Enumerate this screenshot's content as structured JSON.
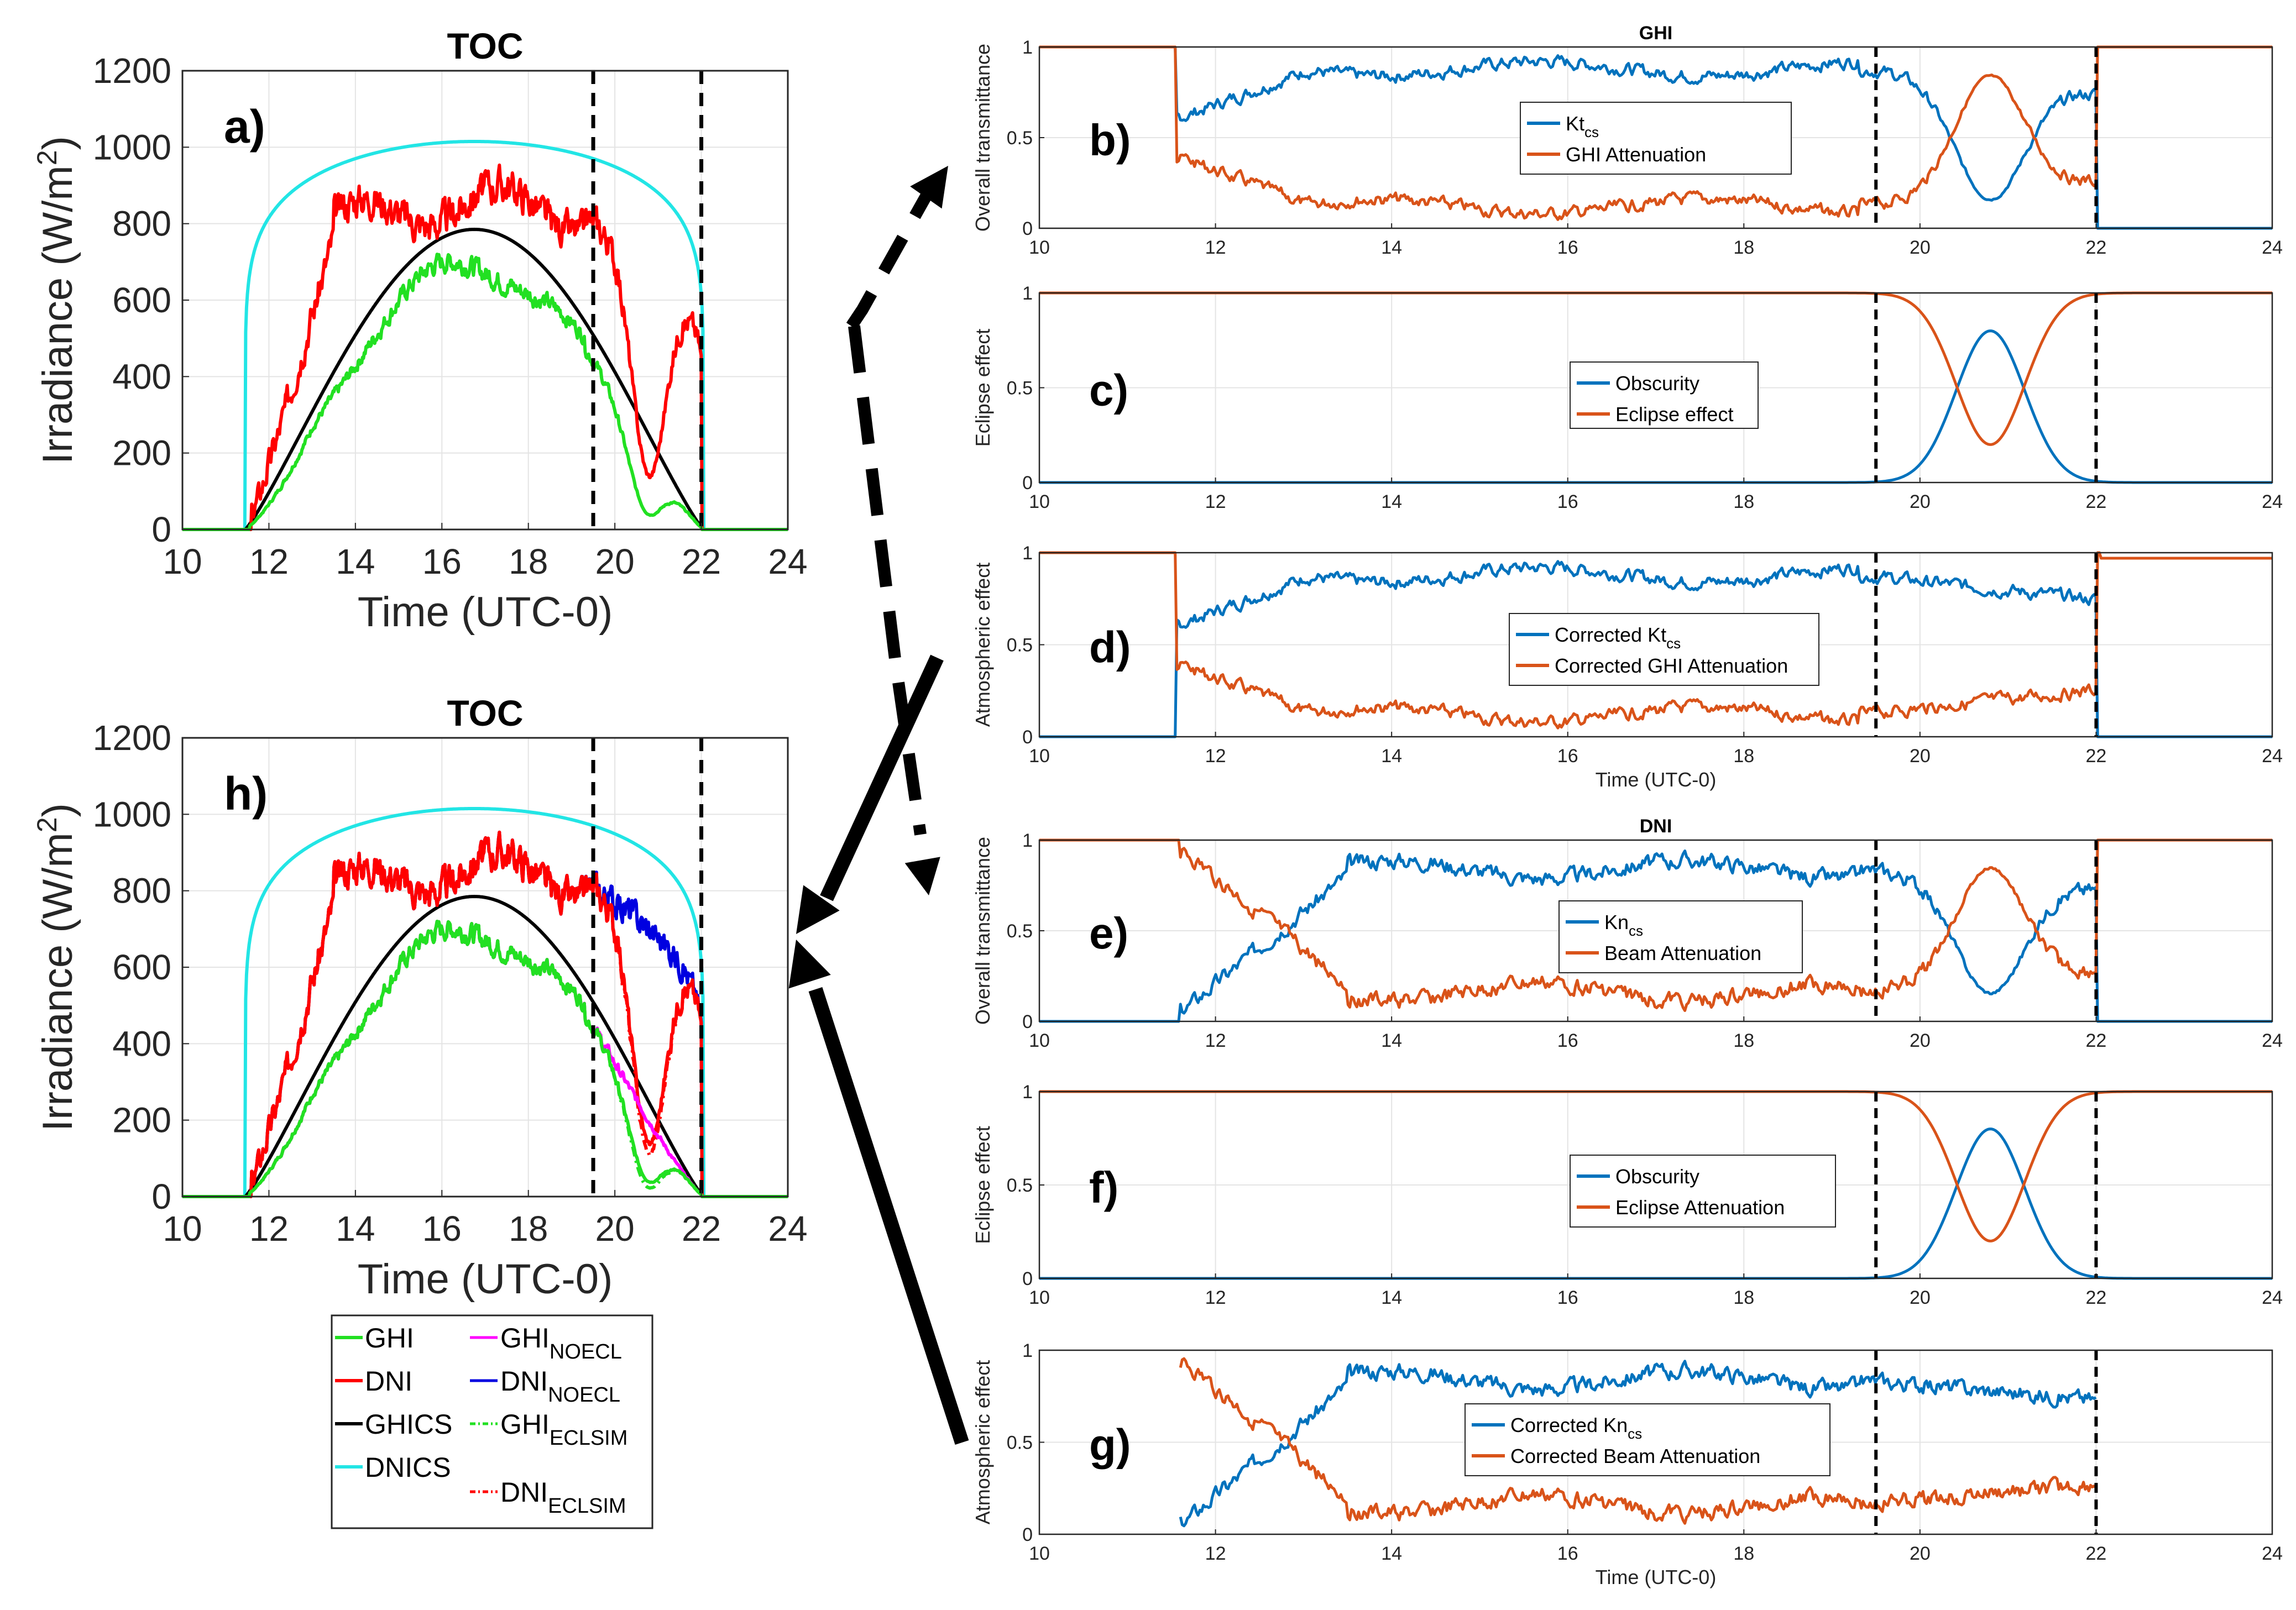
{
  "colors": {
    "blue": "#0072BD",
    "orange": "#D95319",
    "green": "#22E022",
    "red": "#FF0000",
    "black": "#000000",
    "cyan": "#22E5E5",
    "magenta": "#FF00FF",
    "navy": "#0000E0",
    "dash": "#000000"
  },
  "arrows": {
    "description_free": true
  },
  "chart_data": [
    {
      "id": "a",
      "type": "line",
      "title": "TOC",
      "panel_label": "a)",
      "xlabel": "Time (UTC-0)",
      "ylabel": "Irradiance (W/m",
      "ylabel_sup": "2",
      "ylabel_end": ")",
      "xlim": [
        10,
        24
      ],
      "ylim": [
        0,
        1200
      ],
      "xticks": [
        10,
        12,
        14,
        16,
        18,
        20,
        22,
        24
      ],
      "yticks": [
        0,
        200,
        400,
        600,
        800,
        1000,
        1200
      ],
      "grid": true,
      "vlines": [
        19.5,
        22.0
      ],
      "series": [
        {
          "key": "DNICS",
          "color": "cyan",
          "shape": "dni_cs",
          "peak": 1015
        },
        {
          "key": "GHICS",
          "color": "black",
          "shape": "ghi_cs",
          "peak": 785
        },
        {
          "key": "DNI",
          "color": "red",
          "shape": "dni",
          "seed": 3
        },
        {
          "key": "GHI",
          "color": "green",
          "shape": "ghi",
          "seed": 7
        }
      ]
    },
    {
      "id": "h",
      "type": "line",
      "title": "TOC",
      "panel_label": "h)",
      "xlabel": "Time (UTC-0)",
      "ylabel": "Irradiance (W/m",
      "ylabel_sup": "2",
      "ylabel_end": ")",
      "xlim": [
        10,
        24
      ],
      "ylim": [
        0,
        1200
      ],
      "xticks": [
        10,
        12,
        14,
        16,
        18,
        20,
        22,
        24
      ],
      "yticks": [
        0,
        200,
        400,
        600,
        800,
        1000,
        1200
      ],
      "grid": true,
      "vlines": [
        19.5,
        22.0
      ],
      "series": [
        {
          "key": "DNICS",
          "color": "cyan",
          "shape": "dni_cs",
          "peak": 1015
        },
        {
          "key": "GHICS",
          "color": "black",
          "shape": "ghi_cs",
          "peak": 785
        },
        {
          "key": "DNI_NOECL",
          "color": "navy",
          "shape": "dni_noecl",
          "seed": 3
        },
        {
          "key": "DNI",
          "color": "red",
          "shape": "dni",
          "seed": 3
        },
        {
          "key": "DNI_ECLSIM",
          "color": "red",
          "shape": "dni_eclsim",
          "seed": 3,
          "dash": "dashdot"
        },
        {
          "key": "GHI_NOECL",
          "color": "magenta",
          "shape": "ghi_noecl",
          "seed": 7
        },
        {
          "key": "GHI",
          "color": "green",
          "shape": "ghi",
          "seed": 7
        },
        {
          "key": "GHI_ECLSIM",
          "color": "green",
          "shape": "ghi_eclsim",
          "seed": 7,
          "dash": "dashdot"
        }
      ],
      "legend": {
        "col1": [
          {
            "label": "GHI",
            "color": "green",
            "dash": ""
          },
          {
            "label": "DNI",
            "color": "red",
            "dash": ""
          },
          {
            "label": "GHICS",
            "color": "black",
            "dash": ""
          },
          {
            "label": "DNICS",
            "color": "cyan",
            "dash": ""
          }
        ],
        "col2": [
          {
            "label": "GHI",
            "sub": "NOECL",
            "color": "magenta",
            "dash": ""
          },
          {
            "label": "DNI",
            "sub": "NOECL",
            "color": "navy",
            "dash": ""
          },
          {
            "label": "GHI",
            "sub": "ECLSIM",
            "color": "green",
            "dash": "dashdot"
          },
          {
            "label": "DNI",
            "sub": "ECLSIM",
            "color": "red",
            "dash": "dashdot"
          }
        ]
      }
    },
    {
      "id": "b",
      "type": "line",
      "title": "GHI",
      "panel_label": "b)",
      "ylabel": "Overall transmittance",
      "xlabel": "",
      "xlim": [
        10,
        24
      ],
      "ylim": [
        0,
        1
      ],
      "xticks": [
        10,
        12,
        14,
        16,
        18,
        20,
        22,
        24
      ],
      "yticks": [
        0,
        0.5,
        1
      ],
      "ytick_labels": [
        "0",
        "0.5",
        "1"
      ],
      "grid": true,
      "vlines": [
        19.5,
        22.0
      ],
      "series": [
        {
          "key": "Kt_cs",
          "color": "blue",
          "shape": "kt_ghi"
        },
        {
          "key": "GHI_Att",
          "color": "orange",
          "shape": "att_ghi"
        }
      ],
      "legend": [
        {
          "label": "Kt",
          "sub": "cs",
          "color": "blue"
        },
        {
          "label": "GHI Attenuation",
          "sub": "",
          "color": "orange"
        }
      ]
    },
    {
      "id": "c",
      "type": "line",
      "title": "",
      "panel_label": "c)",
      "ylabel": "Eclipse effect",
      "xlabel": "",
      "xlim": [
        10,
        24
      ],
      "ylim": [
        0,
        1
      ],
      "xticks": [
        10,
        12,
        14,
        16,
        18,
        20,
        22,
        24
      ],
      "yticks": [
        0,
        0.5,
        1
      ],
      "ytick_labels": [
        "0",
        "0.5",
        "1"
      ],
      "grid": true,
      "vlines": [
        19.5,
        22.0
      ],
      "series": [
        {
          "key": "Obscurity",
          "color": "blue",
          "shape": "obscurity",
          "peak": 0.8,
          "center": 20.8
        },
        {
          "key": "Eclipse",
          "color": "orange",
          "shape": "eclipse",
          "min": 0.2,
          "center": 20.8
        }
      ],
      "legend": [
        {
          "label": "Obscurity",
          "sub": "",
          "color": "blue"
        },
        {
          "label": "Eclipse effect",
          "sub": "",
          "color": "orange"
        }
      ]
    },
    {
      "id": "d",
      "type": "line",
      "title": "",
      "panel_label": "d)",
      "ylabel": "Atmospheric effect",
      "xlabel": "Time (UTC-0)",
      "xlim": [
        10,
        24
      ],
      "ylim": [
        0,
        1
      ],
      "xticks": [
        10,
        12,
        14,
        16,
        18,
        20,
        22,
        24
      ],
      "yticks": [
        0,
        0.5,
        1
      ],
      "ytick_labels": [
        "0",
        "0.5",
        "1"
      ],
      "grid": true,
      "vlines": [
        19.5,
        22.0
      ],
      "series": [
        {
          "key": "CorrKt",
          "color": "blue",
          "shape": "corr_kt_ghi"
        },
        {
          "key": "CorrAtt",
          "color": "orange",
          "shape": "corr_att_ghi"
        }
      ],
      "legend": [
        {
          "label": "Corrected Kt",
          "sub": "cs",
          "color": "blue"
        },
        {
          "label": "Corrected GHI Attenuation",
          "sub": "",
          "color": "orange"
        }
      ]
    },
    {
      "id": "e",
      "type": "line",
      "title": "DNI",
      "panel_label": "e)",
      "ylabel": "Overall transmittance",
      "xlabel": "",
      "xlim": [
        10,
        24
      ],
      "ylim": [
        0,
        1
      ],
      "xticks": [
        10,
        12,
        14,
        16,
        18,
        20,
        22,
        24
      ],
      "yticks": [
        0,
        0.5,
        1
      ],
      "ytick_labels": [
        "0",
        "0.5",
        "1"
      ],
      "grid": true,
      "vlines": [
        19.5,
        22.0
      ],
      "series": [
        {
          "key": "Kn_cs",
          "color": "blue",
          "shape": "kn_dni"
        },
        {
          "key": "Beam_Att",
          "color": "orange",
          "shape": "att_dni"
        }
      ],
      "legend": [
        {
          "label": "Kn",
          "sub": "cs",
          "color": "blue"
        },
        {
          "label": "Beam Attenuation",
          "sub": "",
          "color": "orange"
        }
      ]
    },
    {
      "id": "f",
      "type": "line",
      "title": "",
      "panel_label": "f)",
      "ylabel": "Eclipse effect",
      "xlabel": "",
      "xlim": [
        10,
        24
      ],
      "ylim": [
        0,
        1
      ],
      "xticks": [
        10,
        12,
        14,
        16,
        18,
        20,
        22,
        24
      ],
      "yticks": [
        0,
        0.5,
        1
      ],
      "ytick_labels": [
        "0",
        "0.5",
        "1"
      ],
      "grid": true,
      "vlines": [
        19.5,
        22.0
      ],
      "series": [
        {
          "key": "Obscurity",
          "color": "blue",
          "shape": "obscurity",
          "peak": 0.8,
          "center": 20.8
        },
        {
          "key": "EclAtt",
          "color": "orange",
          "shape": "eclipse",
          "min": 0.2,
          "center": 20.8
        }
      ],
      "legend": [
        {
          "label": "Obscurity",
          "sub": "",
          "color": "blue"
        },
        {
          "label": "Eclipse Attenuation",
          "sub": "",
          "color": "orange"
        }
      ]
    },
    {
      "id": "g",
      "type": "line",
      "title": "",
      "panel_label": "g)",
      "ylabel": "Atmospheric effect",
      "xlabel": "Time (UTC-0)",
      "xlim": [
        10,
        24
      ],
      "ylim": [
        0,
        1
      ],
      "xticks": [
        10,
        12,
        14,
        16,
        18,
        20,
        22,
        24
      ],
      "yticks": [
        0,
        0.5,
        1
      ],
      "ytick_labels": [
        "0",
        "0.5",
        "1"
      ],
      "grid": true,
      "vlines": [
        19.5,
        22.0
      ],
      "series": [
        {
          "key": "CorrKn",
          "color": "blue",
          "shape": "corr_kn_dni"
        },
        {
          "key": "CorrBeam",
          "color": "orange",
          "shape": "corr_att_dni"
        }
      ],
      "legend": [
        {
          "label": "Corrected Kn",
          "sub": "cs",
          "color": "blue"
        },
        {
          "label": "Corrected Beam Attenuation",
          "sub": "",
          "color": "orange"
        }
      ]
    }
  ]
}
